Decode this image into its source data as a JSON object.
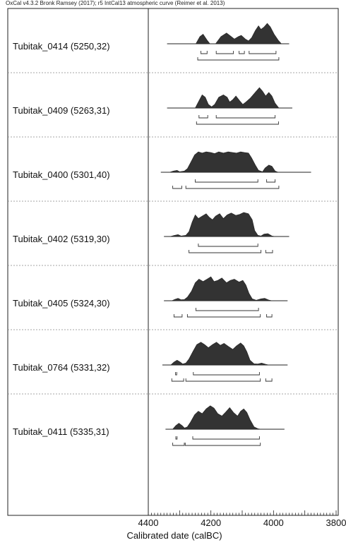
{
  "header": "OxCal v4.3.2 Bronk Ramsey (2017); r5 IntCal13 atmospheric curve (Reimer et al. 2013)",
  "chart_data": {
    "type": "area",
    "title": "",
    "xlabel": "Calibrated date (calBC)",
    "ylabel": "",
    "xlim": [
      4400,
      3800
    ],
    "x_ticks": [
      4400,
      4200,
      4000,
      3800
    ],
    "grid": false,
    "series": [
      {
        "name": "Tubitak_0414 (5250,32)",
        "range_start": 4340,
        "range_end": 3950,
        "density": [
          [
            4248,
            0
          ],
          [
            4235,
            0.3
          ],
          [
            4225,
            0.4
          ],
          [
            4212,
            0.15
          ],
          [
            4203,
            0
          ],
          [
            4185,
            0
          ],
          [
            4168,
            0.3
          ],
          [
            4150,
            0.45
          ],
          [
            4140,
            0.35
          ],
          [
            4125,
            0.2
          ],
          [
            4112,
            0.3
          ],
          [
            4103,
            0.35
          ],
          [
            4090,
            0.2
          ],
          [
            4080,
            0.12
          ],
          [
            4070,
            0.25
          ],
          [
            4058,
            0.55
          ],
          [
            4048,
            0.75
          ],
          [
            4040,
            0.6
          ],
          [
            4030,
            0.7
          ],
          [
            4020,
            0.85
          ],
          [
            4010,
            0.7
          ],
          [
            3998,
            0.4
          ],
          [
            3985,
            0.15
          ],
          [
            3975,
            0
          ]
        ],
        "hpd_68": [
          [
            4232,
            4212
          ],
          [
            4183,
            4128
          ],
          [
            4110,
            4093
          ],
          [
            4078,
            3992
          ]
        ],
        "hpd_95": [
          [
            4242,
            3983
          ]
        ]
      },
      {
        "name": "Tubitak_0409 (5263,31)",
        "range_start": 4340,
        "range_end": 3940,
        "density": [
          [
            4250,
            0
          ],
          [
            4240,
            0.25
          ],
          [
            4228,
            0.55
          ],
          [
            4218,
            0.45
          ],
          [
            4208,
            0.15
          ],
          [
            4198,
            0.05
          ],
          [
            4188,
            0.15
          ],
          [
            4175,
            0.45
          ],
          [
            4160,
            0.55
          ],
          [
            4148,
            0.45
          ],
          [
            4140,
            0.25
          ],
          [
            4130,
            0.35
          ],
          [
            4120,
            0.5
          ],
          [
            4108,
            0.3
          ],
          [
            4098,
            0.15
          ],
          [
            4088,
            0.25
          ],
          [
            4075,
            0.4
          ],
          [
            4065,
            0.55
          ],
          [
            4055,
            0.7
          ],
          [
            4045,
            0.85
          ],
          [
            4035,
            0.7
          ],
          [
            4025,
            0.5
          ],
          [
            4015,
            0.65
          ],
          [
            4005,
            0.5
          ],
          [
            3995,
            0.2
          ],
          [
            3983,
            0
          ]
        ],
        "hpd_68": [
          [
            4238,
            4210
          ],
          [
            4183,
            3995
          ]
        ],
        "hpd_95": [
          [
            4246,
            3984
          ]
        ]
      },
      {
        "name": "Tubitak_0400 (5301,40)",
        "range_start": 4360,
        "range_end": 3880,
        "density": [
          [
            4332,
            0
          ],
          [
            4320,
            0.05
          ],
          [
            4308,
            0.08
          ],
          [
            4300,
            0.02
          ],
          [
            4285,
            0.05
          ],
          [
            4275,
            0.15
          ],
          [
            4265,
            0.4
          ],
          [
            4252,
            0.72
          ],
          [
            4240,
            0.85
          ],
          [
            4228,
            0.8
          ],
          [
            4215,
            0.85
          ],
          [
            4200,
            0.82
          ],
          [
            4188,
            0.78
          ],
          [
            4175,
            0.85
          ],
          [
            4160,
            0.8
          ],
          [
            4145,
            0.85
          ],
          [
            4130,
            0.82
          ],
          [
            4118,
            0.8
          ],
          [
            4105,
            0.85
          ],
          [
            4092,
            0.82
          ],
          [
            4080,
            0.8
          ],
          [
            4070,
            0.6
          ],
          [
            4058,
            0.3
          ],
          [
            4048,
            0.08
          ],
          [
            4035,
            0.02
          ],
          [
            4027,
            0.18
          ],
          [
            4015,
            0.3
          ],
          [
            4005,
            0.25
          ],
          [
            3995,
            0.05
          ],
          [
            3985,
            0
          ]
        ],
        "hpd_68": [
          [
            4250,
            4050
          ],
          [
            4022,
            3995
          ]
        ],
        "hpd_95": [
          [
            4322,
            4293
          ],
          [
            4280,
            3983
          ]
        ]
      },
      {
        "name": "Tubitak_0402 (5319,30)",
        "range_start": 4350,
        "range_end": 3950,
        "density": [
          [
            4330,
            0
          ],
          [
            4318,
            0.04
          ],
          [
            4305,
            0.08
          ],
          [
            4295,
            0.02
          ],
          [
            4280,
            0.05
          ],
          [
            4270,
            0.2
          ],
          [
            4260,
            0.6
          ],
          [
            4250,
            0.9
          ],
          [
            4240,
            0.75
          ],
          [
            4228,
            0.85
          ],
          [
            4215,
            0.95
          ],
          [
            4205,
            0.8
          ],
          [
            4195,
            0.7
          ],
          [
            4185,
            0.85
          ],
          [
            4172,
            0.95
          ],
          [
            4160,
            0.75
          ],
          [
            4148,
            0.9
          ],
          [
            4135,
            0.98
          ],
          [
            4120,
            0.88
          ],
          [
            4108,
            0.92
          ],
          [
            4095,
            1.0
          ],
          [
            4080,
            0.95
          ],
          [
            4068,
            0.7
          ],
          [
            4060,
            0.25
          ],
          [
            4050,
            0.05
          ],
          [
            4040,
            0.02
          ],
          [
            4030,
            0.1
          ],
          [
            4018,
            0.12
          ],
          [
            4005,
            0.02
          ],
          [
            3995,
            0
          ]
        ],
        "hpd_68": [
          [
            4240,
            4050
          ]
        ],
        "hpd_95": [
          [
            4270,
            4040
          ],
          [
            4025,
            4003
          ]
        ]
      },
      {
        "name": "Tubitak_0405 (5324,30)",
        "range_start": 4350,
        "range_end": 3955,
        "density": [
          [
            4325,
            0
          ],
          [
            4315,
            0.06
          ],
          [
            4305,
            0.1
          ],
          [
            4295,
            0.04
          ],
          [
            4285,
            0.05
          ],
          [
            4275,
            0.15
          ],
          [
            4262,
            0.4
          ],
          [
            4250,
            0.75
          ],
          [
            4238,
            0.9
          ],
          [
            4225,
            0.8
          ],
          [
            4212,
            0.9
          ],
          [
            4200,
            1.0
          ],
          [
            4190,
            0.8
          ],
          [
            4178,
            0.85
          ],
          [
            4165,
            0.95
          ],
          [
            4150,
            0.75
          ],
          [
            4138,
            0.85
          ],
          [
            4125,
            0.9
          ],
          [
            4110,
            0.78
          ],
          [
            4098,
            0.85
          ],
          [
            4088,
            0.65
          ],
          [
            4078,
            0.3
          ],
          [
            4068,
            0.08
          ],
          [
            4055,
            0.02
          ],
          [
            4040,
            0.08
          ],
          [
            4028,
            0.1
          ],
          [
            4015,
            0.03
          ],
          [
            4005,
            0
          ]
        ],
        "hpd_68": [
          [
            4248,
            4048
          ]
        ],
        "hpd_95": [
          [
            4318,
            4292
          ],
          [
            4275,
            4042
          ],
          [
            4022,
            4005
          ]
        ]
      },
      {
        "name": "Tubitak_0764 (5331,32)",
        "range_start": 4355,
        "range_end": 3955,
        "density": [
          [
            4328,
            0
          ],
          [
            4318,
            0.12
          ],
          [
            4308,
            0.2
          ],
          [
            4298,
            0.12
          ],
          [
            4290,
            0.04
          ],
          [
            4280,
            0.08
          ],
          [
            4270,
            0.25
          ],
          [
            4258,
            0.55
          ],
          [
            4245,
            0.85
          ],
          [
            4232,
            0.95
          ],
          [
            4220,
            0.85
          ],
          [
            4208,
            0.72
          ],
          [
            4195,
            0.85
          ],
          [
            4182,
            0.95
          ],
          [
            4170,
            0.82
          ],
          [
            4158,
            0.9
          ],
          [
            4145,
            0.78
          ],
          [
            4130,
            0.65
          ],
          [
            4118,
            0.8
          ],
          [
            4105,
            0.92
          ],
          [
            4095,
            0.8
          ],
          [
            4085,
            0.55
          ],
          [
            4075,
            0.2
          ],
          [
            4062,
            0.05
          ],
          [
            4050,
            0.04
          ],
          [
            4038,
            0.08
          ],
          [
            4025,
            0.03
          ],
          [
            4015,
            0
          ]
        ],
        "hpd_68": [
          [
            4313,
            4309
          ],
          [
            4256,
            4045
          ]
        ],
        "hpd_95": [
          [
            4325,
            4287
          ],
          [
            4280,
            4042
          ],
          [
            4025,
            4005
          ]
        ]
      },
      {
        "name": "Tubitak_0411 (5335,31)",
        "range_start": 4345,
        "range_end": 3965,
        "density": [
          [
            4322,
            0
          ],
          [
            4312,
            0.15
          ],
          [
            4302,
            0.25
          ],
          [
            4292,
            0.15
          ],
          [
            4284,
            0.05
          ],
          [
            4275,
            0.1
          ],
          [
            4265,
            0.3
          ],
          [
            4252,
            0.6
          ],
          [
            4240,
            0.75
          ],
          [
            4228,
            0.65
          ],
          [
            4215,
            0.85
          ],
          [
            4202,
            0.98
          ],
          [
            4190,
            0.88
          ],
          [
            4178,
            0.65
          ],
          [
            4165,
            0.55
          ],
          [
            4152,
            0.72
          ],
          [
            4140,
            0.9
          ],
          [
            4128,
            0.7
          ],
          [
            4115,
            0.55
          ],
          [
            4105,
            0.75
          ],
          [
            4095,
            0.85
          ],
          [
            4085,
            0.7
          ],
          [
            4075,
            0.4
          ],
          [
            4062,
            0.1
          ],
          [
            4050,
            0.02
          ],
          [
            4040,
            0
          ]
        ],
        "hpd_68": [
          [
            4312,
            4308
          ],
          [
            4258,
            4045
          ]
        ],
        "hpd_95": [
          [
            4322,
            4285
          ],
          [
            4282,
            4042
          ]
        ]
      }
    ]
  }
}
